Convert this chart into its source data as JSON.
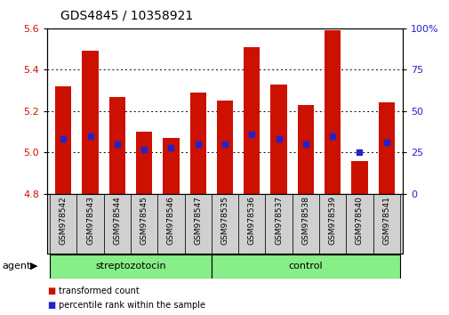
{
  "title": "GDS4845 / 10358921",
  "samples": [
    "GSM978542",
    "GSM978543",
    "GSM978544",
    "GSM978545",
    "GSM978546",
    "GSM978547",
    "GSM978535",
    "GSM978536",
    "GSM978537",
    "GSM978538",
    "GSM978539",
    "GSM978540",
    "GSM978541"
  ],
  "bar_values": [
    5.32,
    5.49,
    5.27,
    5.1,
    5.07,
    5.29,
    5.25,
    5.51,
    5.33,
    5.23,
    5.59,
    4.96,
    5.24
  ],
  "percentile_ranks": [
    33,
    35,
    30,
    27,
    28,
    30,
    30,
    36,
    33,
    30,
    35,
    25,
    31
  ],
  "bar_bottom": 4.8,
  "ylim_left": [
    4.8,
    5.6
  ],
  "ylim_right": [
    0,
    100
  ],
  "yticks_left": [
    4.8,
    5.0,
    5.2,
    5.4,
    5.6
  ],
  "yticks_right": [
    0,
    25,
    50,
    75,
    100
  ],
  "ytick_labels_right": [
    "0",
    "25",
    "50",
    "75",
    "100%"
  ],
  "bar_color": "#cc1100",
  "dot_color": "#2222cc",
  "groups": [
    {
      "label": "streptozotocin",
      "start": 0,
      "end": 6
    },
    {
      "label": "control",
      "start": 6,
      "end": 13
    }
  ],
  "group_color": "#88ee88",
  "xtick_bg_color": "#d0d0d0",
  "agent_label": "agent",
  "legend_items": [
    {
      "label": "transformed count",
      "color": "#cc1100"
    },
    {
      "label": "percentile rank within the sample",
      "color": "#2222cc"
    }
  ],
  "background_color": "#ffffff",
  "tick_label_color_left": "#cc1100",
  "tick_label_color_right": "#2222cc",
  "title_fontsize": 10,
  "bar_width": 0.6
}
